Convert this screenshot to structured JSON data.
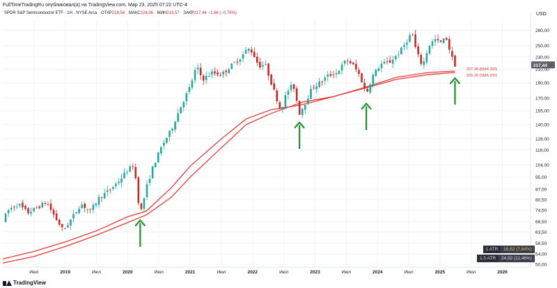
{
  "header": {
    "title": "FullTimeTradingRu опубликовал(а) на TradingView.com, Мар 23, 2025 07:22 UTC-4"
  },
  "legend": {
    "symbol": "SPDR S&P Semiconductor ETF · 1Н · NYSE Arca",
    "open_label": "ОТКР",
    "open_value": "218,54",
    "high_label": "МАКС",
    "high_value": "224,96",
    "low_label": "МИН",
    "low_value": "213,57",
    "close_label": "ЗАКР",
    "close_value": "217,44",
    "change_value": "−1,66 (−0,76%)"
  },
  "price_axis": {
    "currency": "USD",
    "current_price": "217,44",
    "ma_tags": [
      "207,38 (BMA 200)",
      "205,16 (SMA 200)"
    ]
  },
  "atr": [
    {
      "label": "1 ATR",
      "value": "16,62 (7,64%)"
    },
    {
      "label": "1.5 ATR",
      "value": "24,92 (11,46%)"
    }
  ],
  "footer": {
    "brand": "TradingView"
  },
  "colors": {
    "up": "#26a69a",
    "down": "#c62828",
    "ma": "#e53935",
    "arrow": "#1e8c2a",
    "current_price_bg": "#5d606b"
  },
  "chart_data": {
    "type": "candlestick",
    "scale": "log",
    "ylim": [
      50,
      300
    ],
    "y_ticks": [
      "50,00",
      "54,00",
      "58,50",
      "63,50",
      "68,50",
      "74,50",
      "80,50",
      "87,00",
      "95,00",
      "104,00",
      "116,00",
      "126,00",
      "140,00",
      "155,00",
      "170,00",
      "190,00",
      "210,00",
      "230,00",
      "250,00",
      "280,00"
    ],
    "y_tick_values": [
      50,
      54,
      58.5,
      63.5,
      68.5,
      74.5,
      80.5,
      87,
      95,
      104,
      116,
      126,
      140,
      155,
      170,
      190,
      210,
      230,
      250,
      280
    ],
    "x_ticks": [
      "Июл",
      "2019",
      "Июл",
      "2020",
      "Июл",
      "2021",
      "Июл",
      "2022",
      "Июл",
      "2023",
      "Июл",
      "2024",
      "Июл",
      "2025",
      "Июл",
      "2026"
    ],
    "x_tick_dates": [
      2018.5,
      2019.0,
      2019.5,
      2020.0,
      2020.5,
      2021.0,
      2021.5,
      2022.0,
      2022.5,
      2023.0,
      2023.5,
      2024.0,
      2024.5,
      2025.0,
      2025.5,
      2026.0
    ],
    "x_range": [
      2018.0,
      2026.45
    ],
    "price_path": [
      [
        2018.0,
        69
      ],
      [
        2018.1,
        75
      ],
      [
        2018.25,
        78
      ],
      [
        2018.4,
        73
      ],
      [
        2018.55,
        76
      ],
      [
        2018.7,
        79
      ],
      [
        2018.85,
        70
      ],
      [
        2018.97,
        64
      ],
      [
        2019.1,
        70
      ],
      [
        2019.25,
        78
      ],
      [
        2019.4,
        74
      ],
      [
        2019.55,
        82
      ],
      [
        2019.7,
        86
      ],
      [
        2019.85,
        92
      ],
      [
        2020.0,
        100
      ],
      [
        2020.1,
        104
      ],
      [
        2020.2,
        72
      ],
      [
        2020.3,
        88
      ],
      [
        2020.4,
        102
      ],
      [
        2020.55,
        120
      ],
      [
        2020.7,
        135
      ],
      [
        2020.85,
        160
      ],
      [
        2021.0,
        185
      ],
      [
        2021.1,
        215
      ],
      [
        2021.2,
        195
      ],
      [
        2021.35,
        205
      ],
      [
        2021.5,
        202
      ],
      [
        2021.65,
        215
      ],
      [
        2021.8,
        228
      ],
      [
        2021.92,
        245
      ],
      [
        2022.0,
        238
      ],
      [
        2022.1,
        215
      ],
      [
        2022.2,
        218
      ],
      [
        2022.3,
        190
      ],
      [
        2022.45,
        155
      ],
      [
        2022.55,
        178
      ],
      [
        2022.65,
        188
      ],
      [
        2022.75,
        152
      ],
      [
        2022.85,
        165
      ],
      [
        2022.95,
        183
      ],
      [
        2023.1,
        192
      ],
      [
        2023.2,
        200
      ],
      [
        2023.35,
        205
      ],
      [
        2023.5,
        225
      ],
      [
        2023.6,
        218
      ],
      [
        2023.72,
        200
      ],
      [
        2023.82,
        175
      ],
      [
        2023.92,
        200
      ],
      [
        2024.05,
        218
      ],
      [
        2024.2,
        222
      ],
      [
        2024.35,
        238
      ],
      [
        2024.45,
        255
      ],
      [
        2024.55,
        275
      ],
      [
        2024.62,
        240
      ],
      [
        2024.72,
        215
      ],
      [
        2024.82,
        250
      ],
      [
        2024.92,
        262
      ],
      [
        2025.0,
        255
      ],
      [
        2025.1,
        265
      ],
      [
        2025.18,
        232
      ],
      [
        2025.24,
        217
      ]
    ],
    "series": [
      {
        "name": "SMA 200",
        "last_value": 205.16,
        "values_path": [
          [
            2018.0,
            50.5
          ],
          [
            2018.5,
            53
          ],
          [
            2019.0,
            57
          ],
          [
            2019.5,
            62
          ],
          [
            2020.0,
            68
          ],
          [
            2020.3,
            72
          ],
          [
            2020.7,
            82
          ],
          [
            2021.0,
            95
          ],
          [
            2021.5,
            118
          ],
          [
            2021.9,
            140
          ],
          [
            2022.3,
            152
          ],
          [
            2022.8,
            165
          ],
          [
            2023.3,
            172
          ],
          [
            2023.8,
            183
          ],
          [
            2024.3,
            195
          ],
          [
            2024.8,
            202
          ],
          [
            2025.24,
            205.2
          ]
        ]
      },
      {
        "name": "EMA 200",
        "last_value": 207.38,
        "values_path": [
          [
            2018.0,
            52
          ],
          [
            2018.5,
            55
          ],
          [
            2019.0,
            59
          ],
          [
            2019.5,
            64
          ],
          [
            2020.0,
            71
          ],
          [
            2020.3,
            74
          ],
          [
            2020.7,
            88
          ],
          [
            2021.0,
            103
          ],
          [
            2021.5,
            126
          ],
          [
            2021.9,
            146
          ],
          [
            2022.3,
            156
          ],
          [
            2022.8,
            162
          ],
          [
            2023.3,
            172
          ],
          [
            2023.8,
            184
          ],
          [
            2024.3,
            198
          ],
          [
            2024.8,
            205
          ],
          [
            2025.24,
            207.4
          ]
        ]
      }
    ],
    "annotations": [
      {
        "type": "arrow-up",
        "x": 2020.2,
        "y": 72
      },
      {
        "type": "arrow-up",
        "x": 2022.75,
        "y": 148
      },
      {
        "type": "arrow-up",
        "x": 2023.82,
        "y": 170
      },
      {
        "type": "arrow-up",
        "x": 2025.24,
        "y": 205
      }
    ]
  }
}
